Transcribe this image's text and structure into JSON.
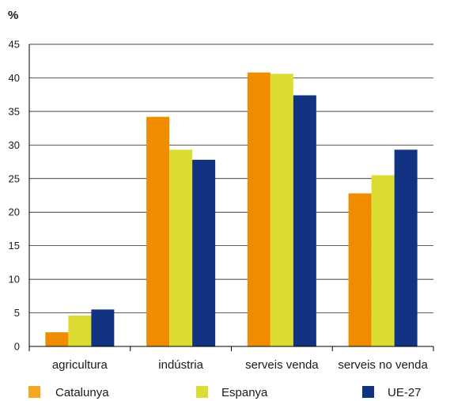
{
  "chart_data": {
    "type": "bar",
    "ylabel": "%",
    "ylim": [
      0,
      45
    ],
    "yticks": [
      0,
      5,
      10,
      15,
      20,
      25,
      30,
      35,
      40,
      45
    ],
    "grid": true,
    "legend": "bottom",
    "categories": [
      "agricultura",
      "indústria",
      "serveis venda",
      "serveis no venda"
    ],
    "series": [
      {
        "name": "Catalunya",
        "color": "#f08c00",
        "legend_color": "#f5a623",
        "values": [
          2.1,
          34.2,
          40.8,
          22.8
        ]
      },
      {
        "name": "Espanya",
        "color": "#dcdc32",
        "legend_color": "#dcdc32",
        "values": [
          4.6,
          29.3,
          40.6,
          25.5
        ]
      },
      {
        "name": "UE-27",
        "color": "#123282",
        "legend_color": "#123282",
        "values": [
          5.5,
          27.8,
          37.4,
          29.3
        ]
      }
    ]
  }
}
